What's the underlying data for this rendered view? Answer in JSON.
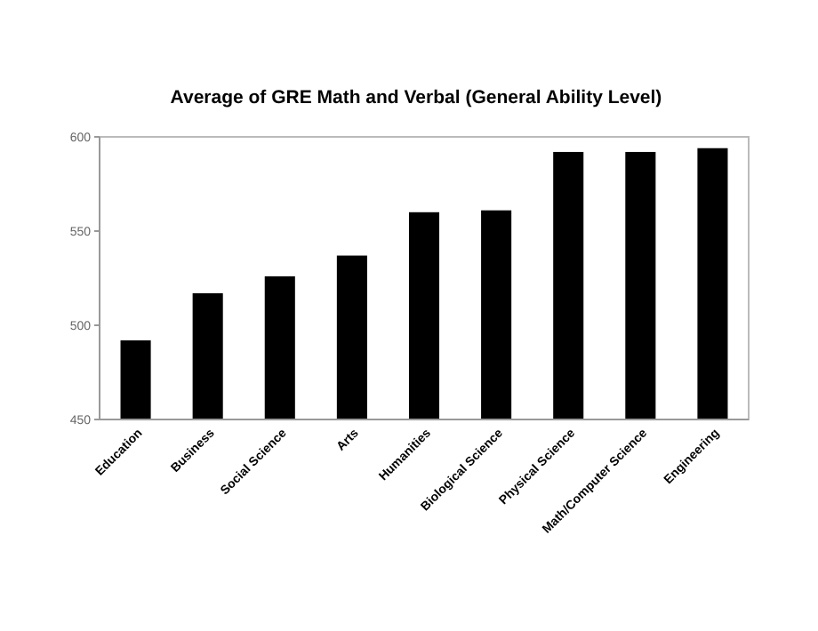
{
  "chart_data": {
    "type": "bar",
    "title": "Average of GRE Math and Verbal (General Ability Level)",
    "categories": [
      "Education",
      "Business",
      "Social Science",
      "Arts",
      "Humanities",
      "Biological Science",
      "Physical Science",
      "Math/Computer Science",
      "Engineering"
    ],
    "values": [
      492,
      517,
      526,
      537,
      560,
      561,
      592,
      592,
      594
    ],
    "color": "#000000",
    "ylim": [
      450,
      600
    ],
    "yticks": [
      450,
      500,
      550,
      600
    ],
    "grid": false
  }
}
